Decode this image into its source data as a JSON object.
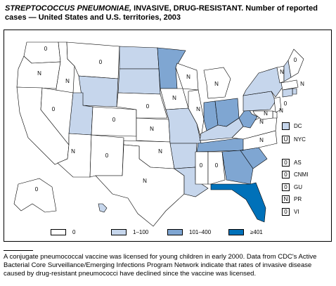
{
  "title": {
    "italic": "STREPTOCOCCUS PNEUMONIAE,",
    "rest": " INVASIVE, DRUG-RESISTANT. Number of reported cases — United States and U.S. territories, 2003"
  },
  "colors": {
    "c0": "#ffffff",
    "c1": "#c6d6ec",
    "c2": "#7fa6d2",
    "c3": "#0071b9"
  },
  "legend": [
    {
      "label": "0",
      "color": "#ffffff"
    },
    {
      "label": "1–100",
      "color": "#c6d6ec"
    },
    {
      "label": "101–400",
      "color": "#7fa6d2"
    },
    {
      "label": "≥401",
      "color": "#0071b9"
    }
  ],
  "states": [
    {
      "abbr": "WA",
      "value": "0",
      "cls": "c0"
    },
    {
      "abbr": "OR",
      "value": "N",
      "cls": "c0"
    },
    {
      "abbr": "CA",
      "value": "",
      "cls": "c0"
    },
    {
      "abbr": "ID",
      "value": "N",
      "cls": "c0"
    },
    {
      "abbr": "NV",
      "value": "0",
      "cls": "c0"
    },
    {
      "abbr": "MT",
      "value": "0",
      "cls": "c0"
    },
    {
      "abbr": "WY",
      "value": "",
      "cls": "c1"
    },
    {
      "abbr": "UT",
      "value": "",
      "cls": "c1"
    },
    {
      "abbr": "CO",
      "value": "0",
      "cls": "c0"
    },
    {
      "abbr": "AZ",
      "value": "N",
      "cls": "c0"
    },
    {
      "abbr": "NM",
      "value": "0",
      "cls": "c0"
    },
    {
      "abbr": "ND",
      "value": "",
      "cls": "c1"
    },
    {
      "abbr": "SD",
      "value": "",
      "cls": "c1"
    },
    {
      "abbr": "NE",
      "value": "0",
      "cls": "c0"
    },
    {
      "abbr": "KS",
      "value": "N",
      "cls": "c0"
    },
    {
      "abbr": "OK",
      "value": "N",
      "cls": "c0"
    },
    {
      "abbr": "TX",
      "value": "N",
      "cls": "c0"
    },
    {
      "abbr": "MN",
      "value": "",
      "cls": "c2"
    },
    {
      "abbr": "IA",
      "value": "N",
      "cls": "c0"
    },
    {
      "abbr": "MO",
      "value": "",
      "cls": "c1"
    },
    {
      "abbr": "AR",
      "value": "",
      "cls": "c1"
    },
    {
      "abbr": "LA",
      "value": "",
      "cls": "c1"
    },
    {
      "abbr": "WI",
      "value": "N",
      "cls": "c0"
    },
    {
      "abbr": "IL",
      "value": "N",
      "cls": "c0"
    },
    {
      "abbr": "MI",
      "value": "N",
      "cls": "c0"
    },
    {
      "abbr": "IN",
      "value": "",
      "cls": "c2"
    },
    {
      "abbr": "OH",
      "value": "",
      "cls": "c2"
    },
    {
      "abbr": "KY",
      "value": "",
      "cls": "c1"
    },
    {
      "abbr": "TN",
      "value": "",
      "cls": "c2"
    },
    {
      "abbr": "MS",
      "value": "0",
      "cls": "c0"
    },
    {
      "abbr": "AL",
      "value": "0",
      "cls": "c0"
    },
    {
      "abbr": "GA",
      "value": "",
      "cls": "c2"
    },
    {
      "abbr": "FL",
      "value": "",
      "cls": "c3"
    },
    {
      "abbr": "SC",
      "value": "",
      "cls": "c2"
    },
    {
      "abbr": "NC",
      "value": "N",
      "cls": "c0"
    },
    {
      "abbr": "VA",
      "value": "N",
      "cls": "c0"
    },
    {
      "abbr": "WV",
      "value": "",
      "cls": "c2"
    },
    {
      "abbr": "PA",
      "value": "",
      "cls": "c1"
    },
    {
      "abbr": "NY",
      "value": "",
      "cls": "c1"
    },
    {
      "abbr": "VT",
      "value": "N",
      "cls": "c0"
    },
    {
      "abbr": "NH",
      "value": "",
      "cls": "c1"
    },
    {
      "abbr": "ME",
      "value": "0",
      "cls": "c0"
    },
    {
      "abbr": "MA",
      "value": "N",
      "cls": "c0"
    },
    {
      "abbr": "RI",
      "value": "",
      "cls": "c1"
    },
    {
      "abbr": "CT",
      "value": "",
      "cls": "c1"
    },
    {
      "abbr": "NJ",
      "value": "0",
      "cls": "c0"
    },
    {
      "abbr": "DE",
      "value": "N",
      "cls": "c0"
    },
    {
      "abbr": "MD",
      "value": "N",
      "cls": "c0"
    },
    {
      "abbr": "AK",
      "value": "0",
      "cls": "c0"
    },
    {
      "abbr": "HI",
      "value": "",
      "cls": "c1"
    }
  ],
  "side": [
    {
      "code": "DC",
      "value": "",
      "cls": "c1"
    },
    {
      "code": "NYC",
      "value": "U",
      "cls": "c0"
    }
  ],
  "territories": [
    {
      "code": "AS",
      "value": "0"
    },
    {
      "code": "CNMI",
      "value": "0"
    },
    {
      "code": "GU",
      "value": "0"
    },
    {
      "code": "PR",
      "value": "N"
    },
    {
      "code": "VI",
      "value": "0"
    }
  ],
  "footnote": "A conjugate pneumococcal vaccine was licensed for young children in early 2000. Data from CDC's Active Bacterial Core Surveillance/Emerging Infections Program Network indicate that rates of invasive disease caused by drug-resistant pneumococci have declined since the vaccine was licensed."
}
